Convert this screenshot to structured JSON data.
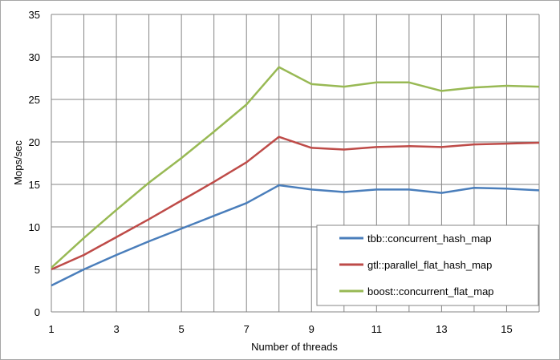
{
  "chart_data": {
    "type": "line",
    "title": "",
    "xlabel": "Number of threads",
    "ylabel": "Mops/sec",
    "xlim": [
      1,
      16
    ],
    "ylim": [
      0,
      35
    ],
    "x_ticks": [
      "1",
      "3",
      "5",
      "7",
      "9",
      "11",
      "13",
      "15"
    ],
    "y_ticks": [
      "0",
      "5",
      "10",
      "15",
      "20",
      "25",
      "30",
      "35"
    ],
    "grid": true,
    "legend_position": "bottom-right",
    "x": [
      1,
      2,
      3,
      4,
      5,
      6,
      7,
      8,
      9,
      10,
      11,
      12,
      13,
      14,
      15,
      16
    ],
    "series": [
      {
        "name": "tbb::concurrent_hash_map",
        "color": "#4a7ebb",
        "values": [
          3.1,
          5.0,
          6.7,
          8.3,
          9.8,
          11.3,
          12.8,
          14.9,
          14.4,
          14.1,
          14.4,
          14.4,
          14.0,
          14.6,
          14.5,
          14.3
        ]
      },
      {
        "name": "gtl::parallel_flat_hash_map",
        "color": "#be4b48",
        "values": [
          5.0,
          6.7,
          8.8,
          10.9,
          13.1,
          15.3,
          17.6,
          20.6,
          19.3,
          19.1,
          19.4,
          19.5,
          19.4,
          19.7,
          19.8,
          19.9
        ]
      },
      {
        "name": "boost::concurrent_flat_map",
        "color": "#98b954",
        "values": [
          5.2,
          8.7,
          12.0,
          15.2,
          18.1,
          21.2,
          24.4,
          28.8,
          26.8,
          26.5,
          27.0,
          27.0,
          26.0,
          26.4,
          26.6,
          26.5
        ]
      }
    ]
  }
}
